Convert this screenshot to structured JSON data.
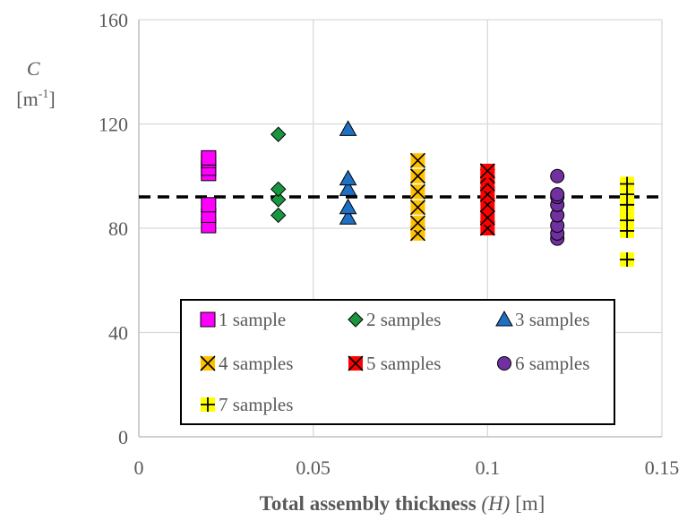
{
  "chart_data": {
    "type": "scatter",
    "title": "",
    "xlabel": {
      "bold": "Total assembly thickness ",
      "italic": "(H)",
      "unit": " [m]"
    },
    "ylabel": {
      "symbol": "C",
      "unit_base": "[m",
      "unit_sup": "-1",
      "unit_end": "]"
    },
    "xlim": [
      0,
      0.15
    ],
    "ylim": [
      0,
      160
    ],
    "xticks": [
      0,
      0.05,
      0.1,
      0.15
    ],
    "xtick_labels": [
      "0",
      "0.05",
      "0.1",
      "0.15"
    ],
    "yticks": [
      0,
      40,
      80,
      120,
      160
    ],
    "ytick_labels": [
      "0",
      "40",
      "80",
      "120",
      "160"
    ],
    "grid": true,
    "legend_placement": "lower-center",
    "reference_line": {
      "y": 92,
      "style": "dashed",
      "color": "#000000"
    },
    "series": [
      {
        "name": "1 sample",
        "marker": "square",
        "color": "#ff00ff",
        "x": [
          0.02,
          0.02,
          0.02,
          0.02,
          0.02,
          0.02,
          0.02
        ],
        "y": [
          81,
          85,
          89,
          101,
          103,
          106,
          107
        ]
      },
      {
        "name": "2 samples",
        "marker": "diamond",
        "color": "#1a9641",
        "x": [
          0.04,
          0.04,
          0.04,
          0.04
        ],
        "y": [
          85,
          91,
          95,
          116
        ]
      },
      {
        "name": "3 samples",
        "marker": "triangle",
        "color": "#1f6fc5",
        "x": [
          0.06,
          0.06,
          0.06,
          0.06,
          0.06
        ],
        "y": [
          84,
          88,
          95,
          99,
          118
        ]
      },
      {
        "name": "4 samples",
        "marker": "x-square",
        "color": "#ffc000",
        "x": [
          0.08,
          0.08,
          0.08,
          0.08,
          0.08,
          0.08
        ],
        "y": [
          78,
          82,
          88,
          94,
          100,
          106
        ]
      },
      {
        "name": "5 samples",
        "marker": "x-square",
        "color": "#ff0000",
        "x": [
          0.1,
          0.1,
          0.1,
          0.1,
          0.1,
          0.1,
          0.1
        ],
        "y": [
          80,
          84,
          89,
          93,
          97,
          100,
          102
        ]
      },
      {
        "name": "6 samples",
        "marker": "circle",
        "color": "#7030a0",
        "x": [
          0.12,
          0.12,
          0.12,
          0.12,
          0.12,
          0.12,
          0.12,
          0.12
        ],
        "y": [
          76,
          78,
          81,
          85,
          89,
          92,
          93,
          100
        ]
      },
      {
        "name": "7 samples",
        "marker": "plus",
        "color": "#ffff00",
        "x": [
          0.14,
          0.14,
          0.14,
          0.14,
          0.14,
          0.14,
          0.14
        ],
        "y": [
          68,
          79,
          83,
          87,
          89,
          93,
          97
        ]
      }
    ]
  }
}
